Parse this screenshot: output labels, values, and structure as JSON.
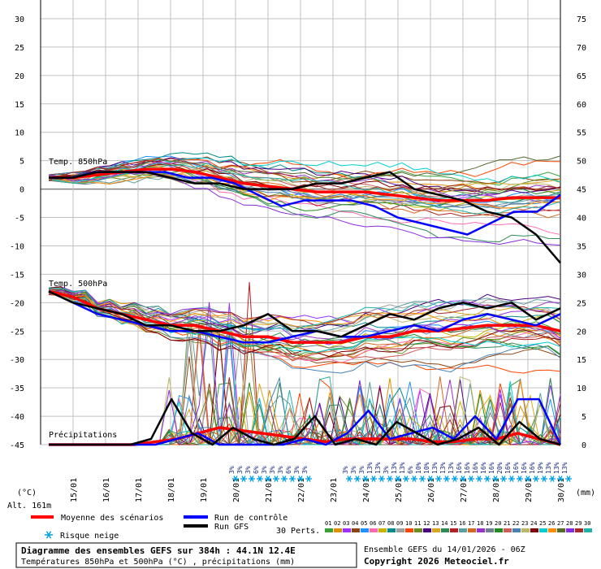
{
  "chart_data": {
    "type": "line",
    "title": "Diagramme des ensembles GEFS sur 384h : 44.1N 12.4E",
    "subtitle": "Températures 850hPa et 500hPa (°C) , précipitations (mm)",
    "run_info": "Ensemble GEFS du 14/01/2026 - 06Z",
    "copyright": "Copyright 2026 Meteociel.fr",
    "altitude": "Alt. 161m",
    "left_axis_unit": "(°C)",
    "right_axis_unit": "(mm)",
    "left_ticks": [
      "30",
      "25",
      "20",
      "15",
      "10",
      "5",
      "0",
      "-5",
      "-10",
      "-15",
      "-20",
      "-25",
      "-30",
      "-35",
      "-40",
      "-45"
    ],
    "right_ticks": [
      "75",
      "70",
      "65",
      "60",
      "55",
      "50",
      "45",
      "40",
      "35",
      "30",
      "25",
      "20",
      "15",
      "10",
      "5",
      "0"
    ],
    "x_ticks": [
      "15/01",
      "16/01",
      "17/01",
      "18/01",
      "19/01",
      "20/01",
      "21/01",
      "22/01",
      "23/01",
      "24/01",
      "25/01",
      "26/01",
      "27/01",
      "28/01",
      "29/01",
      "30/01"
    ],
    "ylim_left": [
      -45,
      30
    ],
    "ylim_right": [
      0,
      75
    ],
    "grid": true,
    "section_labels": [
      "Temp. 850hPa",
      "Temp. 500hPa",
      "Précipitations"
    ],
    "legend": {
      "mean": "Moyenne des scénarios",
      "control": "Run de contrôle",
      "gfs": "Run GFS",
      "snow": "Risque neige",
      "perts": "30 Perts.",
      "pert_numbers": [
        "01",
        "02",
        "03",
        "04",
        "05",
        "06",
        "07",
        "08",
        "09",
        "10",
        "11",
        "12",
        "13",
        "14",
        "15",
        "16",
        "17",
        "18",
        "19",
        "20",
        "21",
        "22",
        "23",
        "24",
        "25",
        "26",
        "27",
        "28",
        "29",
        "30"
      ]
    },
    "snow_risk": {
      "window1": {
        "start": "20/01",
        "values": [
          "3%",
          "3%",
          "3%",
          "6%",
          "3%",
          "3%",
          "3%",
          "6%",
          "3%",
          "3%"
        ]
      },
      "window2": {
        "start": "24/01",
        "values": [
          "3%",
          "3%",
          "3%",
          "13%",
          "13%",
          "3%",
          "13%",
          "13%",
          "6%",
          "10%",
          "10%",
          "13%",
          "13%",
          "13%",
          "16%",
          "16%",
          "16%",
          "16%",
          "16%",
          "20%",
          "16%",
          "16%",
          "16%",
          "16%",
          "19%",
          "13%",
          "13%",
          "13%"
        ]
      }
    },
    "colors": {
      "mean": "#ff0000",
      "control": "#0000ff",
      "gfs": "#000000",
      "grid": "#c0c0c0",
      "snow": "#00a0e0",
      "perturbations": [
        "#3aa03a",
        "#e09000",
        "#9b30ff",
        "#8b4513",
        "#1e90ff",
        "#ff69b4",
        "#c8b400",
        "#008b8b",
        "#a0a0a0",
        "#ff4500",
        "#6b8e23",
        "#4b0082",
        "#daa520",
        "#2e8b57",
        "#b22222",
        "#5f9ea0",
        "#d2691e",
        "#9932cc",
        "#708090",
        "#228b22",
        "#cd5c5c",
        "#4682b4",
        "#bdb76b",
        "#800000",
        "#00ced1",
        "#ff8c00",
        "#556b2f",
        "#8a2be2",
        "#a52a2a",
        "#20b2aa"
      ]
    },
    "series": [
      {
        "name": "Moyenne des scénarios",
        "level": "850hPa",
        "values": [
          2,
          2,
          2.5,
          3,
          3.5,
          3.5,
          3,
          2,
          1,
          0.5,
          0,
          -0.5,
          -0.5,
          -0.5,
          -1,
          -1.5,
          -2,
          -2,
          -2,
          -1.5,
          -1.5,
          -1.5
        ]
      },
      {
        "name": "Run de contrôle",
        "level": "850hPa",
        "values": [
          2,
          2,
          3,
          3,
          3,
          3,
          2,
          2,
          1,
          -1,
          -3,
          -2,
          -2,
          -2,
          -3,
          -5,
          -6,
          -7,
          -8,
          -6,
          -4,
          -4,
          -1
        ]
      },
      {
        "name": "Run GFS",
        "level": "850hPa",
        "values": [
          2,
          2,
          3,
          3,
          3,
          2,
          1,
          1,
          0,
          0,
          0,
          1,
          1,
          2,
          3,
          0,
          -1,
          -2,
          -4,
          -5,
          -8,
          -13
        ]
      },
      {
        "name": "Moyenne des scénarios",
        "level": "500hPa",
        "values": [
          -18,
          -19,
          -21,
          -22,
          -23,
          -24,
          -24,
          -25,
          -26,
          -26,
          -27,
          -27,
          -27,
          -26,
          -26,
          -25,
          -25,
          -24.5,
          -24,
          -24,
          -24,
          -25
        ]
      },
      {
        "name": "Run de contrôle",
        "level": "500hPa",
        "values": [
          -18,
          -20,
          -22,
          -23,
          -24,
          -25,
          -25,
          -26,
          -27,
          -27,
          -26,
          -25,
          -26,
          -26,
          -25,
          -24,
          -25,
          -23,
          -22,
          -23,
          -24,
          -22
        ]
      },
      {
        "name": "Run GFS",
        "level": "500hPa",
        "values": [
          -18,
          -20,
          -21,
          -22,
          -24,
          -24,
          -25,
          -25,
          -24,
          -22,
          -25,
          -25,
          -26,
          -24,
          -22,
          -23,
          -21,
          -20,
          -21,
          -20,
          -23,
          -21
        ]
      },
      {
        "name": "Moyenne des scénarios",
        "level": "precip_mm",
        "values": [
          0,
          0,
          0,
          0,
          0,
          0.5,
          1,
          2,
          3,
          2.5,
          2,
          1.5,
          1,
          0.5,
          1,
          1,
          1,
          1,
          0.5,
          0.5,
          1,
          1,
          2,
          1,
          0
        ]
      },
      {
        "name": "Run de contrôle",
        "level": "precip_mm",
        "values": [
          0,
          0,
          0,
          0,
          0,
          0,
          1,
          2,
          0,
          0,
          0,
          0,
          1,
          0,
          2,
          6,
          1,
          2,
          3,
          1,
          5,
          1,
          8,
          8,
          0
        ]
      },
      {
        "name": "Run GFS",
        "level": "precip_mm",
        "values": [
          0,
          0,
          0,
          0,
          0,
          1,
          8,
          2,
          0,
          3,
          1,
          0,
          1,
          5,
          0,
          1,
          0,
          4,
          2,
          0,
          1,
          3,
          0,
          4,
          1,
          0
        ]
      }
    ]
  }
}
